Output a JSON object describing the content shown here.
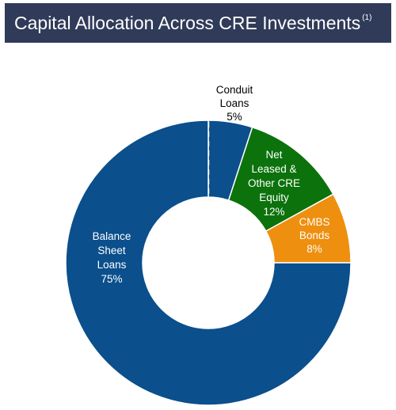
{
  "header": {
    "title": "Capital Allocation Across CRE Investments",
    "footnote_marker": "(1)",
    "background_color": "#303b59"
  },
  "chart_data": {
    "type": "pie",
    "donut": true,
    "title": "Capital Allocation Across CRE Investments",
    "slices": [
      {
        "label": [
          "Conduit",
          "Loans"
        ],
        "display_value": "5%",
        "value": 5,
        "color": "#0b4f8c",
        "label_color": "#000000",
        "label_outside": true,
        "dashed_start_separator": true
      },
      {
        "label": [
          "Net",
          "Leased &",
          "Other CRE",
          "Equity"
        ],
        "display_value": "12%",
        "value": 12,
        "color": "#0c720c",
        "label_color": "#ffffff",
        "label_outside": false
      },
      {
        "label": [
          "CMBS",
          "Bonds"
        ],
        "display_value": "8%",
        "value": 8,
        "color": "#ee8f10",
        "label_color": "#ffffff",
        "label_outside": false
      },
      {
        "label": [
          "Balance",
          "Sheet",
          "Loans"
        ],
        "display_value": "75%",
        "value": 75,
        "color": "#0b4f8c",
        "label_color": "#ffffff",
        "label_outside": false
      }
    ]
  }
}
